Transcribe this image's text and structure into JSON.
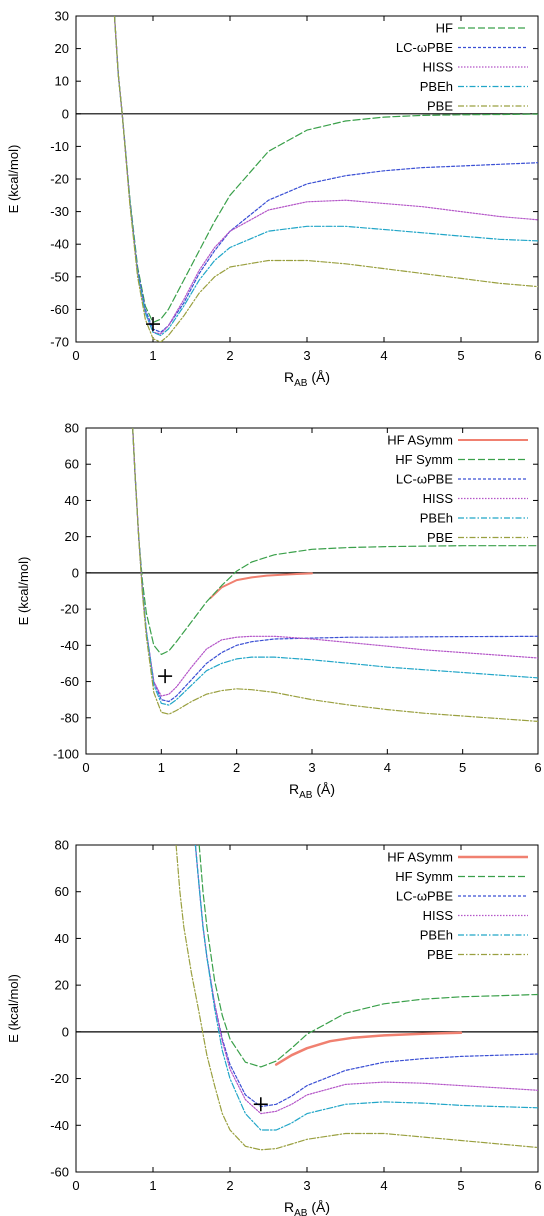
{
  "chart_data": [
    {
      "type": "line",
      "xlabel_main": "R",
      "xlabel_sub": "AB",
      "xlabel_unit": " (Å)",
      "ylabel": "E (kcal/mol)",
      "xlim": [
        0,
        6
      ],
      "ylim": [
        -70,
        30
      ],
      "xticks": [
        "0",
        "1",
        "2",
        "3",
        "4",
        "5",
        "6"
      ],
      "yticks": [
        "30",
        "20",
        "10",
        "0",
        "-10",
        "-20",
        "-30",
        "-40",
        "-50",
        "-60",
        "-70"
      ],
      "legend_position": "top-right",
      "zero_line": true,
      "marker": {
        "symbol": "+",
        "x": 1.0,
        "y": -64.5
      },
      "series": [
        {
          "name": "HF",
          "color": "#3aa04a",
          "dash": "7,3",
          "x": [
            0.5,
            0.55,
            0.6,
            0.7,
            0.8,
            0.9,
            1.0,
            1.1,
            1.2,
            1.4,
            1.6,
            1.8,
            2.0,
            2.5,
            3.0,
            3.5,
            4.0,
            4.5,
            5.0,
            5.5,
            6.0
          ],
          "y": [
            30,
            12,
            0,
            -26,
            -47,
            -59,
            -64,
            -63,
            -60,
            -51,
            -42,
            -33,
            -25,
            -11.5,
            -5,
            -2.2,
            -1.0,
            -0.5,
            -0.3,
            -0.2,
            -0.1
          ]
        },
        {
          "name": "LC-ωPBE",
          "color": "#3a4fd4",
          "dash": "3,2",
          "x": [
            0.5,
            0.55,
            0.6,
            0.7,
            0.8,
            0.9,
            1.0,
            1.1,
            1.2,
            1.4,
            1.6,
            1.8,
            2.0,
            2.5,
            3.0,
            3.5,
            4.0,
            4.5,
            5.0,
            5.5,
            6.0
          ],
          "y": [
            30,
            12,
            0,
            -27,
            -48,
            -60,
            -66,
            -67,
            -65,
            -58,
            -49,
            -42,
            -36,
            -26.5,
            -21.5,
            -19,
            -17.5,
            -16.5,
            -16,
            -15.5,
            -15
          ]
        },
        {
          "name": "HISS",
          "color": "#b455c8",
          "dash": "1.5,1.5",
          "x": [
            0.5,
            0.55,
            0.6,
            0.7,
            0.8,
            0.9,
            1.0,
            1.1,
            1.2,
            1.4,
            1.6,
            1.8,
            2.0,
            2.5,
            3.0,
            3.5,
            4.0,
            4.5,
            5.0,
            5.5,
            6.0
          ],
          "y": [
            30,
            12,
            0,
            -27,
            -49,
            -61,
            -67,
            -67.5,
            -65,
            -57,
            -48,
            -41,
            -36,
            -29.5,
            -27,
            -26.5,
            -27.5,
            -28.5,
            -30,
            -31.5,
            -32.5
          ]
        },
        {
          "name": "PBEh",
          "color": "#22a6c8",
          "dash": "6,2,1.5,2",
          "x": [
            0.5,
            0.55,
            0.6,
            0.7,
            0.8,
            0.9,
            1.0,
            1.1,
            1.2,
            1.4,
            1.6,
            1.8,
            2.0,
            2.5,
            3.0,
            3.5,
            4.0,
            4.5,
            5.0,
            5.5,
            6.0
          ],
          "y": [
            30,
            12,
            0,
            -27,
            -49,
            -61,
            -67,
            -68,
            -66,
            -59,
            -51,
            -45,
            -41,
            -36,
            -34.5,
            -34.5,
            -35.5,
            -36.5,
            -37.5,
            -38.5,
            -39
          ]
        },
        {
          "name": "PBE",
          "color": "#9aa040",
          "dash": "6,2,1.5,2",
          "x": [
            0.5,
            0.55,
            0.6,
            0.7,
            0.8,
            0.9,
            1.0,
            1.1,
            1.2,
            1.4,
            1.6,
            1.8,
            2.0,
            2.5,
            3.0,
            3.5,
            4.0,
            4.5,
            5.0,
            5.5,
            6.0
          ],
          "y": [
            30,
            12,
            0,
            -28,
            -50,
            -63,
            -69,
            -70,
            -68,
            -62,
            -55,
            -50,
            -47,
            -45,
            -45,
            -46,
            -47.5,
            -49,
            -50.5,
            -52,
            -53
          ]
        }
      ]
    },
    {
      "type": "line",
      "xlabel_main": "R",
      "xlabel_sub": "AB",
      "xlabel_unit": " (Å)",
      "ylabel": "E (kcal/mol)",
      "xlim": [
        0,
        6
      ],
      "ylim": [
        -100,
        80
      ],
      "xticks": [
        "0",
        "1",
        "2",
        "3",
        "4",
        "5",
        "6"
      ],
      "yticks": [
        "80",
        "60",
        "40",
        "20",
        "0",
        "-20",
        "-40",
        "-60",
        "-80",
        "-100"
      ],
      "legend_position": "top-right",
      "zero_line": true,
      "marker": {
        "symbol": "+",
        "x": 1.05,
        "y": -57
      },
      "series": [
        {
          "name": "HF ASymm",
          "color": "#f08070",
          "dash": "",
          "width": 2,
          "x": [
            1.65,
            1.8,
            2.0,
            2.2,
            2.4,
            2.6,
            2.8,
            3.0
          ],
          "y": [
            -14,
            -8,
            -4,
            -2.5,
            -1.5,
            -1,
            -0.6,
            -0.3
          ]
        },
        {
          "name": "HF Symm",
          "color": "#3aa04a",
          "dash": "7,3",
          "x": [
            0.62,
            0.65,
            0.7,
            0.75,
            0.8,
            0.9,
            1.0,
            1.1,
            1.2,
            1.4,
            1.6,
            1.8,
            2.0,
            2.2,
            2.5,
            3.0,
            3.5,
            4.0,
            4.5,
            5.0,
            5.5,
            6.0
          ],
          "y": [
            80,
            55,
            20,
            -5,
            -22,
            -40,
            -45,
            -43,
            -38,
            -27,
            -16,
            -7,
            1,
            6,
            10,
            13,
            14,
            14.5,
            14.8,
            15,
            15,
            15
          ]
        },
        {
          "name": "LC-ωPBE",
          "color": "#3a4fd4",
          "dash": "3,2",
          "x": [
            0.62,
            0.65,
            0.7,
            0.75,
            0.8,
            0.9,
            1.0,
            1.1,
            1.2,
            1.4,
            1.6,
            1.8,
            2.0,
            2.2,
            2.5,
            3.0,
            3.5,
            4.0,
            4.5,
            5.0,
            5.5,
            6.0
          ],
          "y": [
            80,
            55,
            20,
            -10,
            -32,
            -60,
            -70,
            -71,
            -68,
            -59,
            -50,
            -44,
            -40,
            -38,
            -36.5,
            -36,
            -35.5,
            -35.5,
            -35.3,
            -35.2,
            -35.1,
            -35
          ]
        },
        {
          "name": "HISS",
          "color": "#b455c8",
          "dash": "1.5,1.5",
          "x": [
            0.62,
            0.65,
            0.7,
            0.75,
            0.8,
            0.9,
            1.0,
            1.1,
            1.2,
            1.4,
            1.6,
            1.8,
            2.0,
            2.2,
            2.5,
            3.0,
            3.5,
            4.0,
            4.5,
            5.0,
            5.5,
            6.0
          ],
          "y": [
            80,
            55,
            20,
            -10,
            -32,
            -60,
            -68,
            -67,
            -63,
            -52,
            -42,
            -37,
            -35.5,
            -35,
            -35,
            -36.5,
            -38.5,
            -40.5,
            -42.5,
            -44,
            -45.5,
            -47
          ]
        },
        {
          "name": "PBEh",
          "color": "#22a6c8",
          "dash": "6,2,1.5,2",
          "x": [
            0.62,
            0.65,
            0.7,
            0.75,
            0.8,
            0.9,
            1.0,
            1.1,
            1.2,
            1.4,
            1.6,
            1.8,
            2.0,
            2.2,
            2.5,
            3.0,
            3.5,
            4.0,
            4.5,
            5.0,
            5.5,
            6.0
          ],
          "y": [
            80,
            55,
            20,
            -10,
            -32,
            -62,
            -72,
            -73,
            -70,
            -62,
            -54,
            -50,
            -47.5,
            -46.5,
            -46.5,
            -48,
            -50,
            -52,
            -53.5,
            -55,
            -56.5,
            -58
          ]
        },
        {
          "name": "PBE",
          "color": "#9aa040",
          "dash": "6,2,1.5,2",
          "x": [
            0.62,
            0.65,
            0.7,
            0.75,
            0.8,
            0.9,
            1.0,
            1.1,
            1.2,
            1.4,
            1.6,
            1.8,
            2.0,
            2.2,
            2.5,
            3.0,
            3.5,
            4.0,
            4.5,
            5.0,
            5.5,
            6.0
          ],
          "y": [
            80,
            55,
            20,
            -12,
            -35,
            -66,
            -77,
            -78,
            -76,
            -71,
            -67,
            -65,
            -64,
            -64.5,
            -66,
            -70,
            -73,
            -75.5,
            -77.5,
            -79,
            -80.5,
            -82
          ]
        }
      ]
    },
    {
      "type": "line",
      "xlabel_main": "R",
      "xlabel_sub": "AB",
      "xlabel_unit": " (Å)",
      "ylabel": "E (kcal/mol)",
      "xlim": [
        0,
        6
      ],
      "ylim": [
        -60,
        80
      ],
      "xticks": [
        "0",
        "1",
        "2",
        "3",
        "4",
        "5",
        "6"
      ],
      "yticks": [
        "80",
        "60",
        "40",
        "20",
        "0",
        "-20",
        "-40",
        "-60"
      ],
      "legend_position": "top-right",
      "zero_line": true,
      "marker": {
        "symbol": "+",
        "x": 2.4,
        "y": -31
      },
      "series": [
        {
          "name": "HF ASymm",
          "color": "#f08070",
          "dash": "",
          "width": 2.5,
          "x": [
            2.6,
            2.8,
            3.0,
            3.3,
            3.6,
            4.0,
            4.5,
            5.0
          ],
          "y": [
            -14,
            -10,
            -7,
            -4,
            -2.5,
            -1.5,
            -0.8,
            -0.4
          ]
        },
        {
          "name": "HF Symm",
          "color": "#3aa04a",
          "dash": "7,3",
          "x": [
            1.6,
            1.65,
            1.7,
            1.8,
            1.9,
            2.0,
            2.2,
            2.4,
            2.6,
            2.8,
            3.0,
            3.5,
            4.0,
            4.5,
            5.0,
            5.5,
            6.0
          ],
          "y": [
            80,
            60,
            45,
            22,
            7,
            -3,
            -13,
            -15,
            -12.5,
            -7,
            -1,
            8,
            12,
            14,
            15,
            15.5,
            16
          ]
        },
        {
          "name": "LC-ωPBE",
          "color": "#3a4fd4",
          "dash": "3,2",
          "x": [
            1.55,
            1.6,
            1.65,
            1.7,
            1.8,
            1.9,
            2.0,
            2.2,
            2.4,
            2.6,
            2.8,
            3.0,
            3.5,
            4.0,
            4.5,
            5.0,
            5.5,
            6.0
          ],
          "y": [
            80,
            62,
            45,
            32,
            12,
            -3,
            -14,
            -27,
            -32,
            -31,
            -27.5,
            -23,
            -16.5,
            -13,
            -11.5,
            -10.5,
            -10,
            -9.5
          ]
        },
        {
          "name": "HISS",
          "color": "#b455c8",
          "dash": "1.5,1.5",
          "x": [
            1.55,
            1.6,
            1.65,
            1.7,
            1.8,
            1.9,
            2.0,
            2.2,
            2.4,
            2.6,
            2.8,
            3.0,
            3.5,
            4.0,
            4.5,
            5.0,
            5.5,
            6.0
          ],
          "y": [
            80,
            62,
            45,
            32,
            12,
            -4,
            -16,
            -29,
            -35,
            -34,
            -31,
            -27,
            -22.5,
            -21.5,
            -22,
            -23,
            -24,
            -25
          ]
        },
        {
          "name": "PBEh",
          "color": "#22a6c8",
          "dash": "6,2,1.5,2",
          "x": [
            1.55,
            1.6,
            1.65,
            1.7,
            1.8,
            1.9,
            2.0,
            2.2,
            2.4,
            2.6,
            2.8,
            3.0,
            3.5,
            4.0,
            4.5,
            5.0,
            5.5,
            6.0
          ],
          "y": [
            80,
            62,
            45,
            32,
            10,
            -8,
            -20,
            -35,
            -42,
            -42,
            -39,
            -35,
            -31,
            -30,
            -30.5,
            -31.5,
            -32,
            -32.5
          ]
        },
        {
          "name": "PBE",
          "color": "#9aa040",
          "dash": "6,2,1.5,2",
          "x": [
            1.3,
            1.35,
            1.4,
            1.5,
            1.6,
            1.7,
            1.8,
            1.9,
            2.0,
            2.2,
            2.4,
            2.6,
            2.8,
            3.0,
            3.5,
            4.0,
            4.5,
            5.0,
            5.5,
            6.0
          ],
          "y": [
            80,
            60,
            45,
            25,
            8,
            -10,
            -23,
            -35,
            -42,
            -49,
            -50.5,
            -50,
            -48,
            -46,
            -43.5,
            -43.5,
            -45,
            -46.5,
            -48,
            -49.5
          ]
        }
      ]
    }
  ]
}
